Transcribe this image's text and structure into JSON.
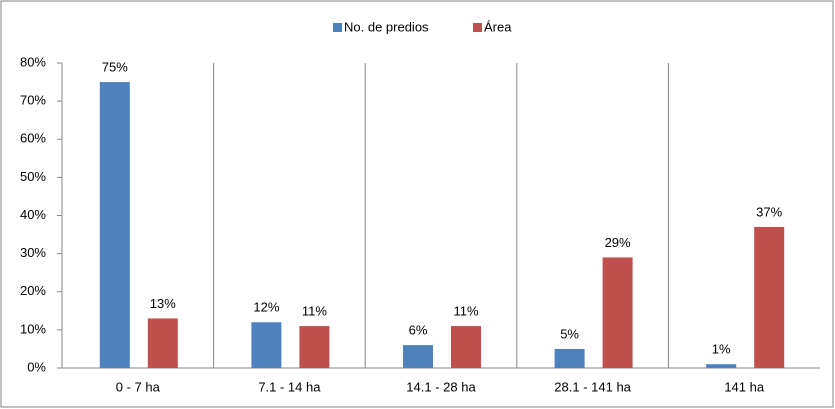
{
  "chart_data": {
    "type": "bar",
    "categories": [
      "0 - 7 ha",
      "7.1 - 14 ha",
      "14.1 - 28 ha",
      "28.1 - 141 ha",
      "141 ha"
    ],
    "series": [
      {
        "name": "No. de predios",
        "color": "#4f81bd",
        "values": [
          75,
          12,
          6,
          5,
          1
        ],
        "value_labels": [
          "75%",
          "12%",
          "6%",
          "5%",
          "1%"
        ]
      },
      {
        "name": "Área",
        "color": "#c0504d",
        "values": [
          13,
          11,
          11,
          29,
          37
        ],
        "value_labels": [
          "13%",
          "11%",
          "11%",
          "29%",
          "37%"
        ]
      }
    ],
    "ylim": [
      0,
      80
    ],
    "yticks": [
      {
        "value": 0,
        "label": "0%"
      },
      {
        "value": 10,
        "label": "10%"
      },
      {
        "value": 20,
        "label": "20%"
      },
      {
        "value": 30,
        "label": "30%"
      },
      {
        "value": 40,
        "label": "40%"
      },
      {
        "value": 50,
        "label": "50%"
      },
      {
        "value": 60,
        "label": "60%"
      },
      {
        "value": 70,
        "label": "70%"
      },
      {
        "value": 80,
        "label": "80%"
      }
    ],
    "legend": "top"
  }
}
